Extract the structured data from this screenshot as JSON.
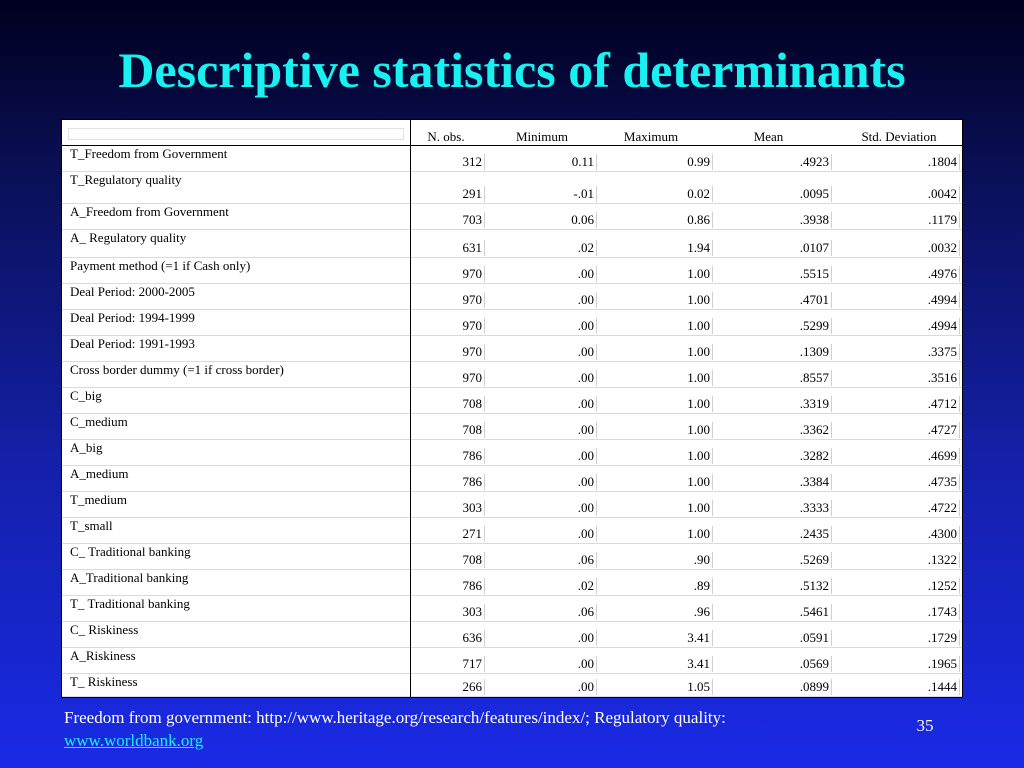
{
  "slide": {
    "title": "Descriptive statistics of determinants",
    "footnote_text": "Freedom from government: http://www.heritage.org/research/features/index/; Regulatory quality:",
    "footnote_link": "www.worldbank.org",
    "page_number": "35"
  },
  "table": {
    "columns": [
      "N. obs.",
      "Minimum",
      "Maximum",
      "Mean",
      "Std. Deviation"
    ],
    "rows": [
      {
        "label": "T_Freedom from Government",
        "values": [
          "312",
          "0.11",
          "0.99",
          ".4923",
          ".1804"
        ]
      },
      {
        "label": "T_Regulatory quality",
        "values": [
          "291",
          "-.01",
          "0.02",
          ".0095",
          ".0042"
        ]
      },
      {
        "label": "A_Freedom from Government",
        "values": [
          "703",
          "0.06",
          "0.86",
          ".3938",
          ".1179"
        ]
      },
      {
        "label": "A_ Regulatory quality",
        "values": [
          "631",
          ".02",
          "1.94",
          ".0107",
          ".0032"
        ]
      },
      {
        "label": "Payment method (=1 if Cash only)",
        "values": [
          "970",
          ".00",
          "1.00",
          ".5515",
          ".4976"
        ]
      },
      {
        "label": "Deal Period: 2000-2005",
        "values": [
          "970",
          ".00",
          "1.00",
          ".4701",
          ".4994"
        ]
      },
      {
        "label": "Deal Period: 1994-1999",
        "values": [
          "970",
          ".00",
          "1.00",
          ".5299",
          ".4994"
        ]
      },
      {
        "label": "Deal Period: 1991-1993",
        "values": [
          "970",
          ".00",
          "1.00",
          ".1309",
          ".3375"
        ]
      },
      {
        "label": "Cross border dummy (=1 if cross border)",
        "values": [
          "970",
          ".00",
          "1.00",
          ".8557",
          ".3516"
        ]
      },
      {
        "label": "C_big",
        "values": [
          "708",
          ".00",
          "1.00",
          ".3319",
          ".4712"
        ]
      },
      {
        "label": "C_medium",
        "values": [
          "708",
          ".00",
          "1.00",
          ".3362",
          ".4727"
        ]
      },
      {
        "label": "A_big",
        "values": [
          "786",
          ".00",
          "1.00",
          ".3282",
          ".4699"
        ]
      },
      {
        "label": "A_medium",
        "values": [
          "786",
          ".00",
          "1.00",
          ".3384",
          ".4735"
        ]
      },
      {
        "label": "T_medium",
        "values": [
          "303",
          ".00",
          "1.00",
          ".3333",
          ".4722"
        ]
      },
      {
        "label": "T_small",
        "values": [
          "271",
          ".00",
          "1.00",
          ".2435",
          ".4300"
        ]
      },
      {
        "label": "C_ Traditional banking",
        "values": [
          "708",
          ".06",
          ".90",
          ".5269",
          ".1322"
        ]
      },
      {
        "label": "A_Traditional banking",
        "values": [
          "786",
          ".02",
          ".89",
          ".5132",
          ".1252"
        ]
      },
      {
        "label": "T_ Traditional banking",
        "values": [
          "303",
          ".06",
          ".96",
          ".5461",
          ".1743"
        ]
      },
      {
        "label": "C_ Riskiness",
        "values": [
          "636",
          ".00",
          "3.41",
          ".0591",
          ".1729"
        ]
      },
      {
        "label": "A_Riskiness",
        "values": [
          "717",
          ".00",
          "3.41",
          ".0569",
          ".1965"
        ]
      },
      {
        "label": "T_ Riskiness",
        "values": [
          "266",
          ".00",
          "1.05",
          ".0899",
          ".1444"
        ]
      }
    ]
  }
}
